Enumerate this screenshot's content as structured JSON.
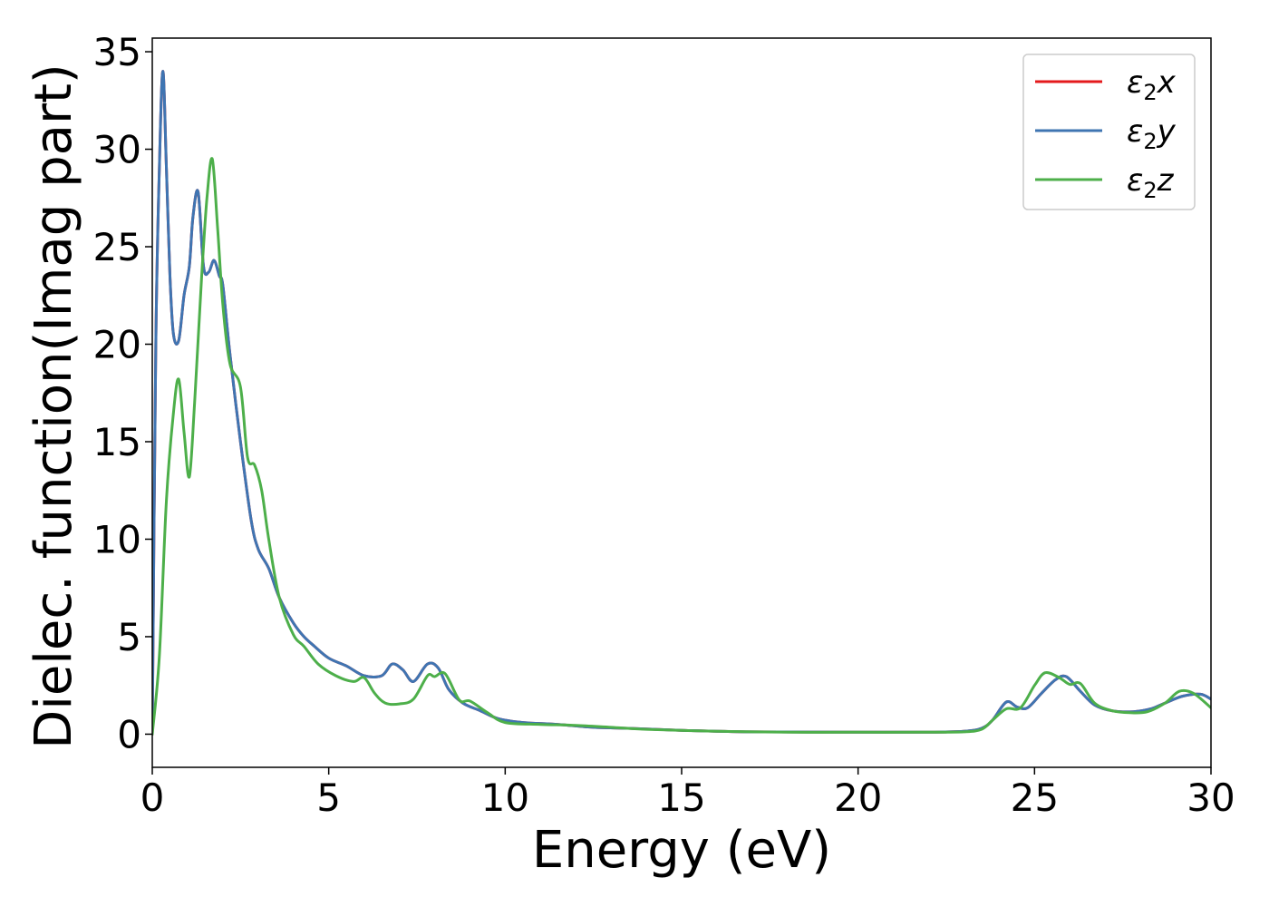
{
  "chart_data": {
    "type": "line",
    "title": "",
    "xlabel": "Energy (eV)",
    "ylabel": "Dielec. function(Imag part)",
    "xlim": [
      0,
      30
    ],
    "ylim": [
      -1.7,
      35.7
    ],
    "xticks": [
      0,
      5,
      10,
      15,
      20,
      25,
      30
    ],
    "yticks": [
      0,
      5,
      10,
      15,
      20,
      25,
      30,
      35
    ],
    "grid": false,
    "legend_position": "top-right",
    "series": [
      {
        "name": "ε₂x",
        "legend_base": "ε",
        "legend_sub": "2",
        "legend_axis": "x",
        "color": "#e41a1c",
        "x": [
          0,
          0.1,
          0.2,
          0.3,
          0.4,
          0.5,
          0.6,
          0.75,
          0.9,
          1.05,
          1.15,
          1.3,
          1.45,
          1.6,
          1.75,
          1.9,
          2.0,
          2.2,
          2.5,
          2.8,
          3.0,
          3.3,
          3.6,
          4.0,
          4.3,
          4.6,
          5.0,
          5.5,
          6.0,
          6.5,
          6.8,
          7.1,
          7.4,
          7.8,
          8.1,
          8.4,
          8.8,
          9.3,
          9.8,
          10.5,
          11.5,
          12.5,
          13.5,
          15,
          17,
          20,
          22,
          23,
          23.5,
          23.8,
          24.2,
          24.5,
          24.8,
          25.2,
          25.6,
          25.9,
          26.3,
          26.7,
          27.2,
          27.8,
          28.3,
          28.7,
          29.2,
          29.7,
          30
        ],
        "y": [
          0,
          20,
          29,
          34,
          29,
          23.5,
          20.5,
          20.2,
          22.5,
          24,
          26.5,
          27.8,
          24,
          23.7,
          24.3,
          23.5,
          23,
          19.5,
          15,
          11,
          9.5,
          8.5,
          7,
          5.7,
          5.0,
          4.5,
          3.9,
          3.5,
          3.0,
          3.0,
          3.6,
          3.3,
          2.7,
          3.6,
          3.4,
          2.3,
          1.6,
          1.2,
          0.8,
          0.6,
          0.5,
          0.35,
          0.3,
          0.2,
          0.12,
          0.1,
          0.1,
          0.15,
          0.3,
          0.7,
          1.65,
          1.4,
          1.35,
          2.1,
          2.8,
          2.95,
          2.2,
          1.5,
          1.2,
          1.15,
          1.3,
          1.6,
          1.95,
          2.05,
          1.8
        ]
      },
      {
        "name": "ε₂y",
        "legend_base": "ε",
        "legend_sub": "2",
        "legend_axis": "y",
        "color": "#3f75b2",
        "x": [
          0,
          0.1,
          0.2,
          0.3,
          0.4,
          0.5,
          0.6,
          0.75,
          0.9,
          1.05,
          1.15,
          1.3,
          1.45,
          1.6,
          1.75,
          1.9,
          2.0,
          2.2,
          2.5,
          2.8,
          3.0,
          3.3,
          3.6,
          4.0,
          4.3,
          4.6,
          5.0,
          5.5,
          6.0,
          6.5,
          6.8,
          7.1,
          7.4,
          7.8,
          8.1,
          8.4,
          8.8,
          9.3,
          9.8,
          10.5,
          11.5,
          12.5,
          13.5,
          15,
          17,
          20,
          22,
          23,
          23.5,
          23.8,
          24.2,
          24.5,
          24.8,
          25.2,
          25.6,
          25.9,
          26.3,
          26.7,
          27.2,
          27.8,
          28.3,
          28.7,
          29.2,
          29.7,
          30
        ],
        "y": [
          0,
          20,
          29,
          34,
          29,
          23.5,
          20.5,
          20.2,
          22.5,
          24,
          26.5,
          27.8,
          24,
          23.7,
          24.3,
          23.5,
          23,
          19.5,
          15,
          11,
          9.5,
          8.5,
          7,
          5.7,
          5.0,
          4.5,
          3.9,
          3.5,
          3.0,
          3.0,
          3.6,
          3.3,
          2.7,
          3.6,
          3.4,
          2.3,
          1.6,
          1.2,
          0.8,
          0.6,
          0.5,
          0.35,
          0.3,
          0.2,
          0.12,
          0.1,
          0.1,
          0.15,
          0.3,
          0.7,
          1.65,
          1.4,
          1.35,
          2.1,
          2.8,
          2.95,
          2.2,
          1.5,
          1.2,
          1.15,
          1.3,
          1.6,
          1.95,
          2.05,
          1.8
        ]
      },
      {
        "name": "ε₂z",
        "legend_base": "ε",
        "legend_sub": "2",
        "legend_axis": "z",
        "color": "#4daf4a",
        "x": [
          0,
          0.2,
          0.4,
          0.6,
          0.75,
          0.9,
          1.05,
          1.2,
          1.4,
          1.55,
          1.7,
          1.85,
          2.0,
          2.2,
          2.5,
          2.7,
          2.9,
          3.1,
          3.3,
          3.6,
          4.0,
          4.3,
          4.7,
          5.2,
          5.7,
          6.0,
          6.3,
          6.6,
          7.0,
          7.4,
          7.8,
          8.0,
          8.3,
          8.7,
          9.0,
          9.5,
          10.0,
          11.0,
          12.0,
          13.0,
          14.0,
          16.0,
          18.0,
          20.0,
          22.0,
          23.0,
          23.5,
          23.8,
          24.2,
          24.6,
          25.0,
          25.3,
          25.7,
          26.0,
          26.3,
          26.7,
          27.2,
          27.7,
          28.2,
          28.7,
          29.1,
          29.5,
          30
        ],
        "y": [
          0,
          4,
          12,
          16.5,
          18.2,
          15.5,
          13.2,
          17,
          23.5,
          27.5,
          29.5,
          26,
          22,
          19,
          17.8,
          14.2,
          13.8,
          12.5,
          10,
          7,
          5.1,
          4.5,
          3.6,
          3.0,
          2.7,
          2.9,
          2.1,
          1.6,
          1.55,
          1.8,
          3.0,
          2.95,
          3.1,
          1.75,
          1.7,
          1.1,
          0.6,
          0.5,
          0.45,
          0.35,
          0.25,
          0.15,
          0.1,
          0.1,
          0.1,
          0.12,
          0.25,
          0.7,
          1.3,
          1.35,
          2.5,
          3.15,
          2.9,
          2.55,
          2.6,
          1.6,
          1.2,
          1.1,
          1.15,
          1.6,
          2.2,
          2.1,
          1.35
        ]
      }
    ]
  }
}
